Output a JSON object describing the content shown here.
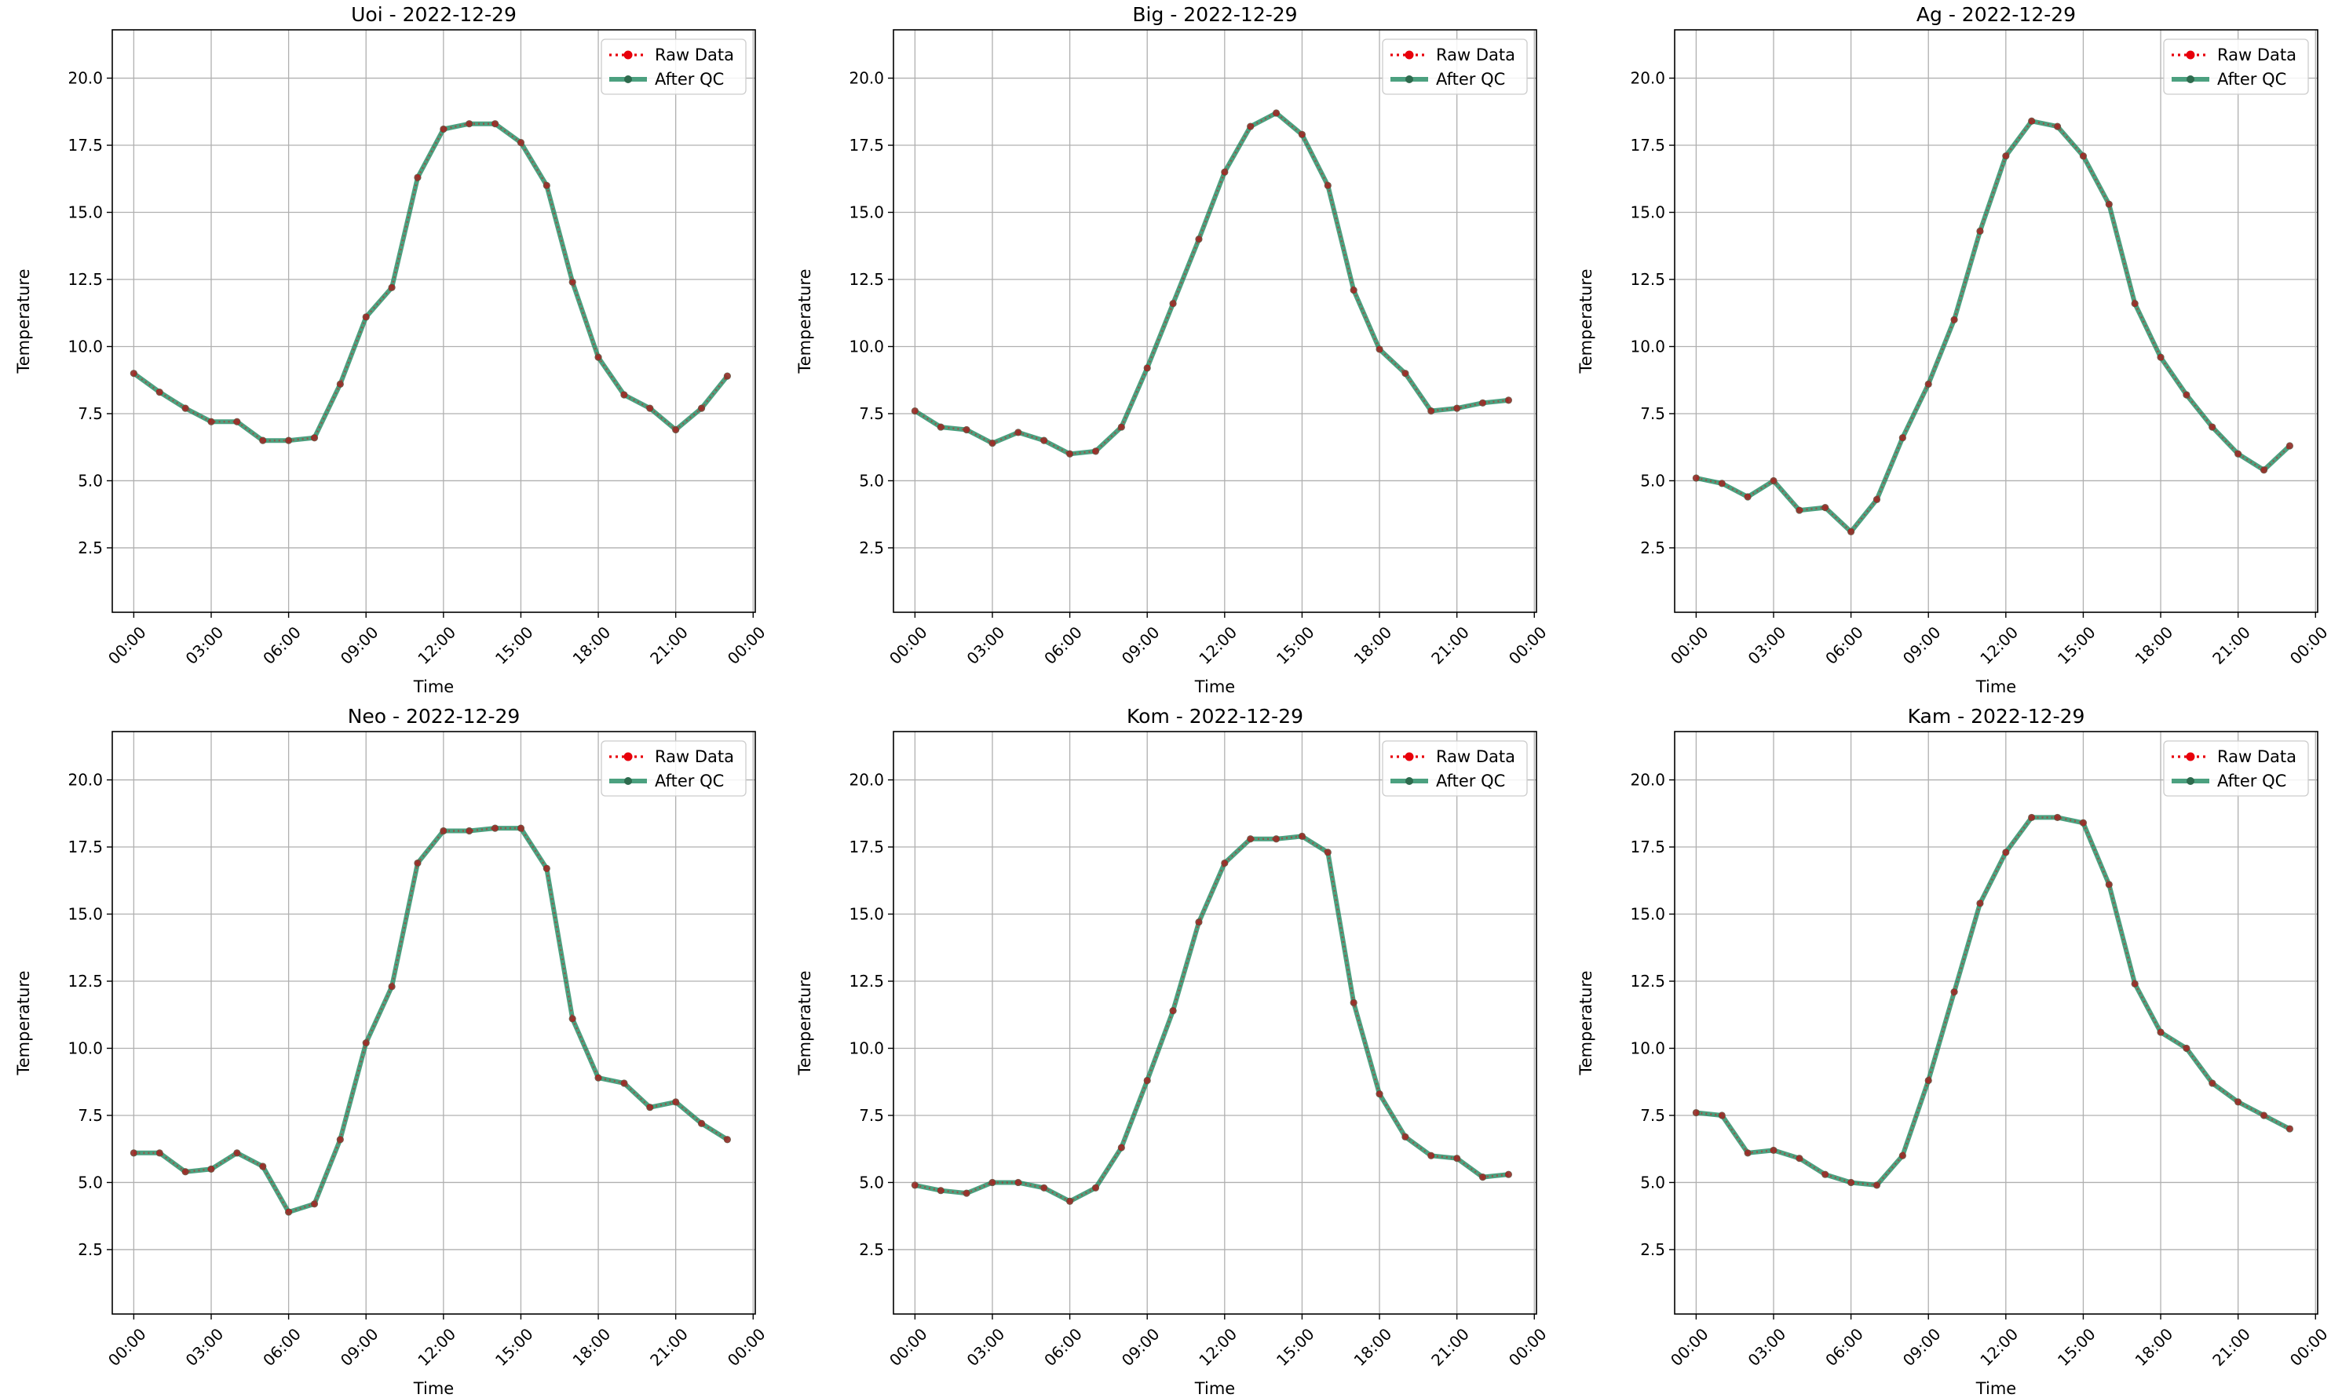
{
  "figure": {
    "legend_labels": [
      "Raw Data",
      "After QC"
    ]
  },
  "colors": {
    "raw": "#e8000b",
    "qc": "#1f8a60",
    "grid": "#b0b0b0",
    "axis": "#000000"
  },
  "chart_data": [
    {
      "type": "line",
      "title": "Uoi - 2022-12-29",
      "xlabel": "Time",
      "ylabel": "Temperature",
      "x": [
        0,
        1,
        2,
        3,
        4,
        5,
        6,
        7,
        8,
        9,
        10,
        11,
        12,
        13,
        14,
        15,
        16,
        17,
        18,
        19,
        20,
        21,
        22,
        23
      ],
      "x_unit": "hour",
      "xticks": [
        "00:00",
        "03:00",
        "06:00",
        "09:00",
        "12:00",
        "15:00",
        "18:00",
        "21:00",
        "00:00"
      ],
      "yticks": [
        "2.5",
        "5.0",
        "7.5",
        "10.0",
        "12.5",
        "15.0",
        "17.5",
        "20.0"
      ],
      "ylim": [
        0.1,
        21.8
      ],
      "grid": true,
      "legend_position": "top-right",
      "series": [
        {
          "name": "Raw Data",
          "values": [
            9.0,
            8.3,
            7.7,
            7.2,
            7.2,
            6.5,
            6.5,
            6.6,
            8.6,
            11.1,
            12.2,
            16.3,
            18.1,
            18.3,
            18.3,
            17.6,
            16.0,
            12.4,
            9.6,
            8.2,
            7.7,
            6.9,
            7.7,
            8.9
          ]
        },
        {
          "name": "After QC",
          "values": [
            9.0,
            8.3,
            7.7,
            7.2,
            7.2,
            6.5,
            6.5,
            6.6,
            8.6,
            11.1,
            12.2,
            16.3,
            18.1,
            18.3,
            18.3,
            17.6,
            16.0,
            12.4,
            9.6,
            8.2,
            7.7,
            6.9,
            7.7,
            8.9
          ]
        }
      ]
    },
    {
      "type": "line",
      "title": "Big - 2022-12-29",
      "xlabel": "Time",
      "ylabel": "Temperature",
      "x": [
        0,
        1,
        2,
        3,
        4,
        5,
        6,
        7,
        8,
        9,
        10,
        11,
        12,
        13,
        14,
        15,
        16,
        17,
        18,
        19,
        20,
        21,
        22,
        23
      ],
      "x_unit": "hour",
      "xticks": [
        "00:00",
        "03:00",
        "06:00",
        "09:00",
        "12:00",
        "15:00",
        "18:00",
        "21:00",
        "00:00"
      ],
      "yticks": [
        "2.5",
        "5.0",
        "7.5",
        "10.0",
        "12.5",
        "15.0",
        "17.5",
        "20.0"
      ],
      "ylim": [
        0.1,
        21.8
      ],
      "grid": true,
      "legend_position": "top-right",
      "series": [
        {
          "name": "Raw Data",
          "values": [
            7.6,
            7.0,
            6.9,
            6.4,
            6.8,
            6.5,
            6.0,
            6.1,
            7.0,
            9.2,
            11.6,
            14.0,
            16.5,
            18.2,
            18.7,
            17.9,
            16.0,
            12.1,
            9.9,
            9.0,
            7.6,
            7.7,
            7.9,
            8.0
          ]
        },
        {
          "name": "After QC",
          "values": [
            7.6,
            7.0,
            6.9,
            6.4,
            6.8,
            6.5,
            6.0,
            6.1,
            7.0,
            9.2,
            11.6,
            14.0,
            16.5,
            18.2,
            18.7,
            17.9,
            16.0,
            12.1,
            9.9,
            9.0,
            7.6,
            7.7,
            7.9,
            8.0
          ]
        }
      ]
    },
    {
      "type": "line",
      "title": "Ag - 2022-12-29",
      "xlabel": "Time",
      "ylabel": "Temperature",
      "x": [
        0,
        1,
        2,
        3,
        4,
        5,
        6,
        7,
        8,
        9,
        10,
        11,
        12,
        13,
        14,
        15,
        16,
        17,
        18,
        19,
        20,
        21,
        22,
        23
      ],
      "x_unit": "hour",
      "xticks": [
        "00:00",
        "03:00",
        "06:00",
        "09:00",
        "12:00",
        "15:00",
        "18:00",
        "21:00",
        "00:00"
      ],
      "yticks": [
        "2.5",
        "5.0",
        "7.5",
        "10.0",
        "12.5",
        "15.0",
        "17.5",
        "20.0"
      ],
      "ylim": [
        0.1,
        21.8
      ],
      "grid": true,
      "legend_position": "top-right",
      "series": [
        {
          "name": "Raw Data",
          "values": [
            5.1,
            4.9,
            4.4,
            5.0,
            3.9,
            4.0,
            3.1,
            4.3,
            6.6,
            8.6,
            11.0,
            14.3,
            17.1,
            18.4,
            18.2,
            17.1,
            15.3,
            11.6,
            9.6,
            8.2,
            7.0,
            6.0,
            5.4,
            6.3
          ]
        },
        {
          "name": "After QC",
          "values": [
            5.1,
            4.9,
            4.4,
            5.0,
            3.9,
            4.0,
            3.1,
            4.3,
            6.6,
            8.6,
            11.0,
            14.3,
            17.1,
            18.4,
            18.2,
            17.1,
            15.3,
            11.6,
            9.6,
            8.2,
            7.0,
            6.0,
            5.4,
            6.3
          ]
        }
      ]
    },
    {
      "type": "line",
      "title": "Neo - 2022-12-29",
      "xlabel": "Time",
      "ylabel": "Temperature",
      "x": [
        0,
        1,
        2,
        3,
        4,
        5,
        6,
        7,
        8,
        9,
        10,
        11,
        12,
        13,
        14,
        15,
        16,
        17,
        18,
        19,
        20,
        21,
        22,
        23
      ],
      "x_unit": "hour",
      "xticks": [
        "00:00",
        "03:00",
        "06:00",
        "09:00",
        "12:00",
        "15:00",
        "18:00",
        "21:00",
        "00:00"
      ],
      "yticks": [
        "2.5",
        "5.0",
        "7.5",
        "10.0",
        "12.5",
        "15.0",
        "17.5",
        "20.0"
      ],
      "ylim": [
        0.1,
        21.8
      ],
      "grid": true,
      "legend_position": "top-right",
      "series": [
        {
          "name": "Raw Data",
          "values": [
            6.1,
            6.1,
            5.4,
            5.5,
            6.1,
            5.6,
            3.9,
            4.2,
            6.6,
            10.2,
            12.3,
            16.9,
            18.1,
            18.1,
            18.2,
            18.2,
            16.7,
            11.1,
            8.9,
            8.7,
            7.8,
            8.0,
            7.2,
            6.6
          ]
        },
        {
          "name": "After QC",
          "values": [
            6.1,
            6.1,
            5.4,
            5.5,
            6.1,
            5.6,
            3.9,
            4.2,
            6.6,
            10.2,
            12.3,
            16.9,
            18.1,
            18.1,
            18.2,
            18.2,
            16.7,
            11.1,
            8.9,
            8.7,
            7.8,
            8.0,
            7.2,
            6.6
          ]
        }
      ]
    },
    {
      "type": "line",
      "title": "Kom - 2022-12-29",
      "xlabel": "Time",
      "ylabel": "Temperature",
      "x": [
        0,
        1,
        2,
        3,
        4,
        5,
        6,
        7,
        8,
        9,
        10,
        11,
        12,
        13,
        14,
        15,
        16,
        17,
        18,
        19,
        20,
        21,
        22,
        23
      ],
      "x_unit": "hour",
      "xticks": [
        "00:00",
        "03:00",
        "06:00",
        "09:00",
        "12:00",
        "15:00",
        "18:00",
        "21:00",
        "00:00"
      ],
      "yticks": [
        "2.5",
        "5.0",
        "7.5",
        "10.0",
        "12.5",
        "15.0",
        "17.5",
        "20.0"
      ],
      "ylim": [
        0.1,
        21.8
      ],
      "grid": true,
      "legend_position": "top-right",
      "series": [
        {
          "name": "Raw Data",
          "values": [
            4.9,
            4.7,
            4.6,
            5.0,
            5.0,
            4.8,
            4.3,
            4.8,
            6.3,
            8.8,
            11.4,
            14.7,
            16.9,
            17.8,
            17.8,
            17.9,
            17.3,
            11.7,
            8.3,
            6.7,
            6.0,
            5.9,
            5.2,
            5.3
          ]
        },
        {
          "name": "After QC",
          "values": [
            4.9,
            4.7,
            4.6,
            5.0,
            5.0,
            4.8,
            4.3,
            4.8,
            6.3,
            8.8,
            11.4,
            14.7,
            16.9,
            17.8,
            17.8,
            17.9,
            17.3,
            11.7,
            8.3,
            6.7,
            6.0,
            5.9,
            5.2,
            5.3
          ]
        }
      ]
    },
    {
      "type": "line",
      "title": "Kam - 2022-12-29",
      "xlabel": "Time",
      "ylabel": "Temperature",
      "x": [
        0,
        1,
        2,
        3,
        4,
        5,
        6,
        7,
        8,
        9,
        10,
        11,
        12,
        13,
        14,
        15,
        16,
        17,
        18,
        19,
        20,
        21,
        22,
        23
      ],
      "x_unit": "hour",
      "xticks": [
        "00:00",
        "03:00",
        "06:00",
        "09:00",
        "12:00",
        "15:00",
        "18:00",
        "21:00",
        "00:00"
      ],
      "yticks": [
        "2.5",
        "5.0",
        "7.5",
        "10.0",
        "12.5",
        "15.0",
        "17.5",
        "20.0"
      ],
      "ylim": [
        0.1,
        21.8
      ],
      "grid": true,
      "legend_position": "top-right",
      "series": [
        {
          "name": "Raw Data",
          "values": [
            7.6,
            7.5,
            6.1,
            6.2,
            5.9,
            5.3,
            5.0,
            4.9,
            6.0,
            8.8,
            12.1,
            15.4,
            17.3,
            18.6,
            18.6,
            18.4,
            16.1,
            12.4,
            10.6,
            10.0,
            8.7,
            8.0,
            7.5,
            7.0
          ]
        },
        {
          "name": "After QC",
          "values": [
            7.6,
            7.5,
            6.1,
            6.2,
            5.9,
            5.3,
            5.0,
            4.9,
            6.0,
            8.8,
            12.1,
            15.4,
            17.3,
            18.6,
            18.6,
            18.4,
            16.1,
            12.4,
            10.6,
            10.0,
            8.7,
            8.0,
            7.5,
            7.0
          ]
        }
      ]
    }
  ]
}
